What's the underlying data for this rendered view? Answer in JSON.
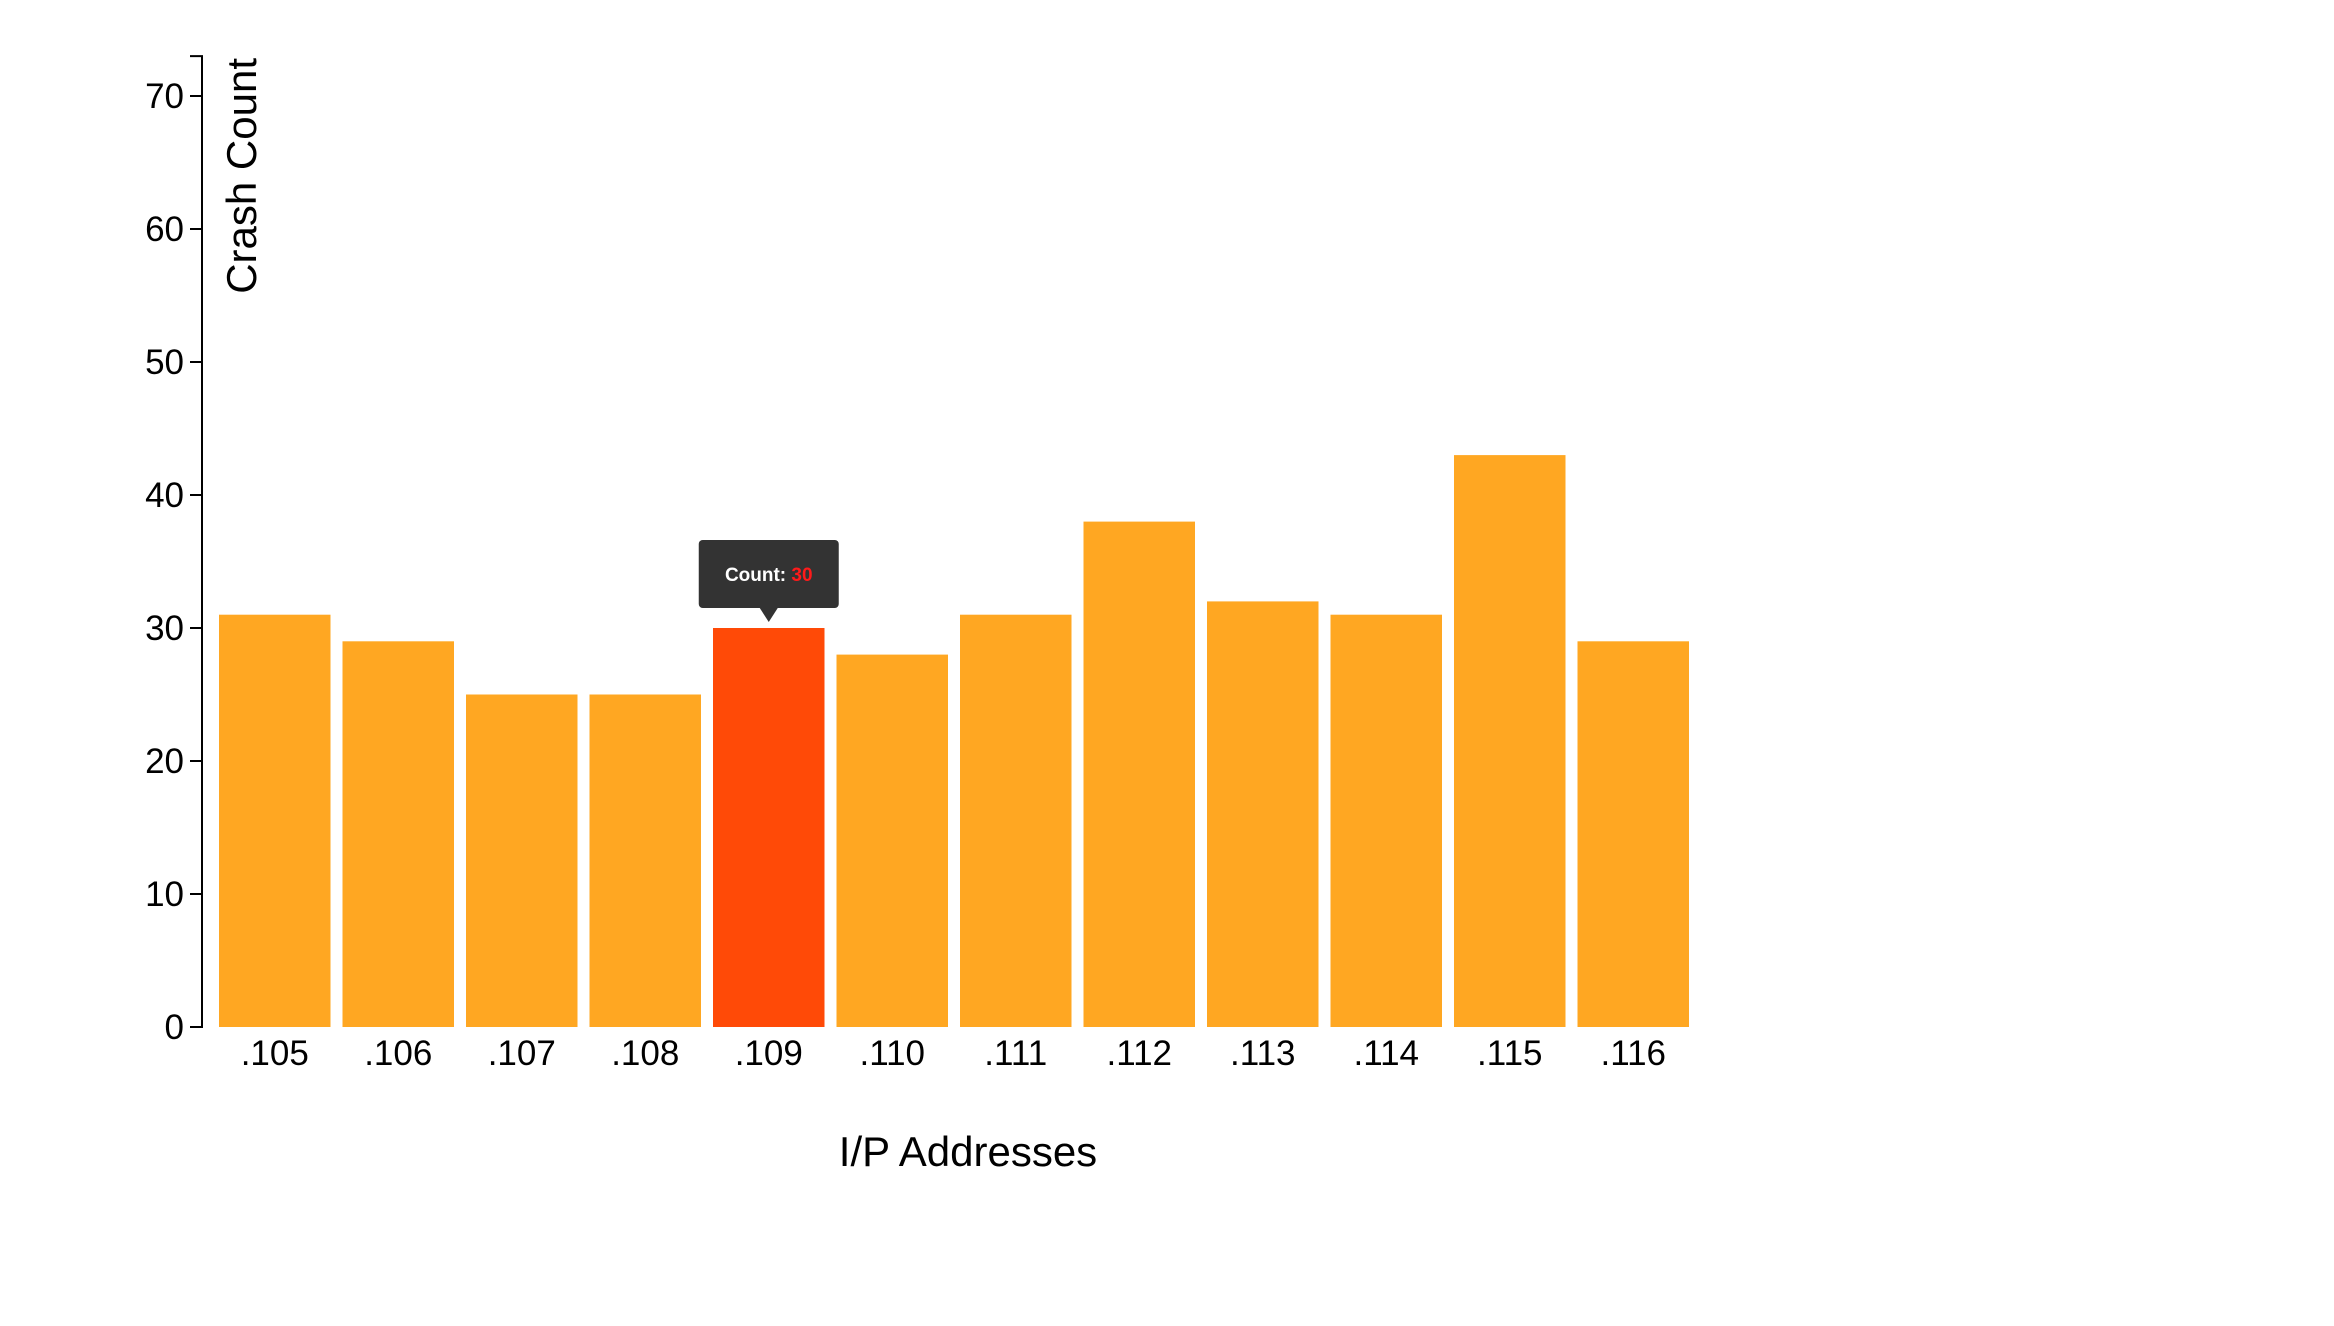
{
  "chart_data": {
    "type": "bar",
    "categories": [
      ".105",
      ".106",
      ".107",
      ".108",
      ".109",
      ".110",
      ".111",
      ".112",
      ".113",
      ".114",
      ".115",
      ".116"
    ],
    "values": [
      31,
      29,
      25,
      25,
      30,
      28,
      31,
      38,
      32,
      31,
      43,
      29
    ],
    "title": "",
    "xlabel": "I/P Addresses",
    "ylabel": "Crash Count",
    "ylim": [
      0,
      73
    ],
    "yticks": [
      0,
      10,
      20,
      30,
      40,
      50,
      60,
      70
    ],
    "grid": false,
    "colors": {
      "bar": "#FFA722",
      "highlight": "#FF4A07",
      "tooltip_bg": "#333333",
      "tooltip_label": "#ffffff",
      "tooltip_value": "#ff1a1a"
    },
    "highlighted_index": 4,
    "tooltip": {
      "label": "Count:",
      "value": "30"
    }
  }
}
